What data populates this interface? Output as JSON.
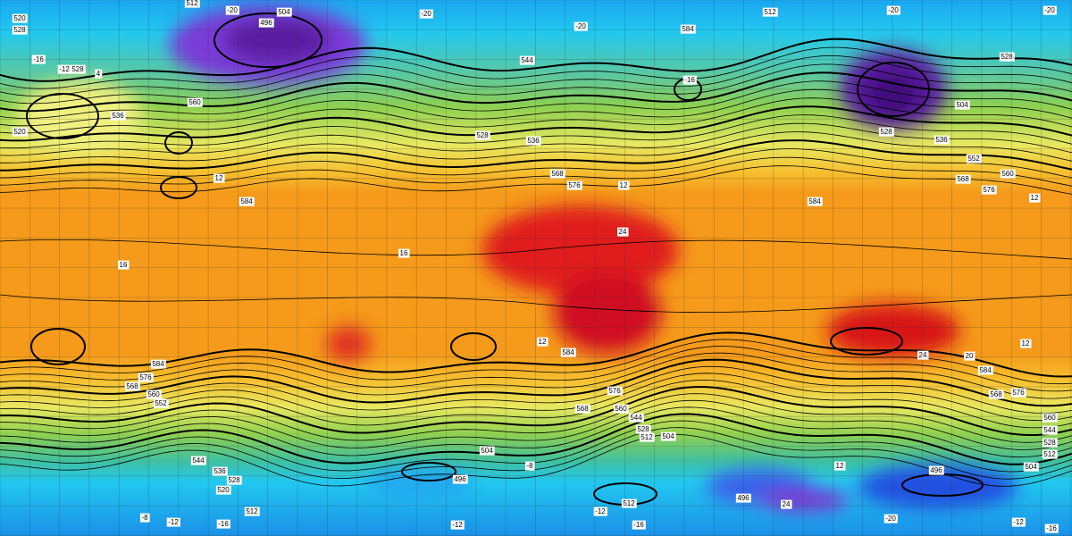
{
  "height_labels": [
    512,
    504,
    496,
    520,
    528,
    528,
    520,
    560,
    536,
    528,
    544,
    584,
    512,
    528,
    504,
    528,
    536,
    552,
    560,
    568,
    576,
    568,
    576,
    584,
    584,
    584,
    576,
    568,
    560,
    552,
    584,
    576,
    568,
    560,
    544,
    528,
    512,
    504,
    504,
    496,
    544,
    536,
    528,
    520,
    512,
    512,
    496,
    496,
    504,
    584,
    576,
    568,
    560,
    544,
    528,
    512,
    536
  ],
  "temperature_labels": [
    -20,
    -20,
    -20,
    -20,
    -20,
    -16,
    -12,
    4,
    -16,
    12,
    12,
    12,
    16,
    16,
    12,
    12,
    24,
    24,
    20,
    -8,
    -8,
    -12,
    -16,
    -12,
    -12,
    -16,
    -20,
    -12,
    -16,
    24,
    12
  ]
}
